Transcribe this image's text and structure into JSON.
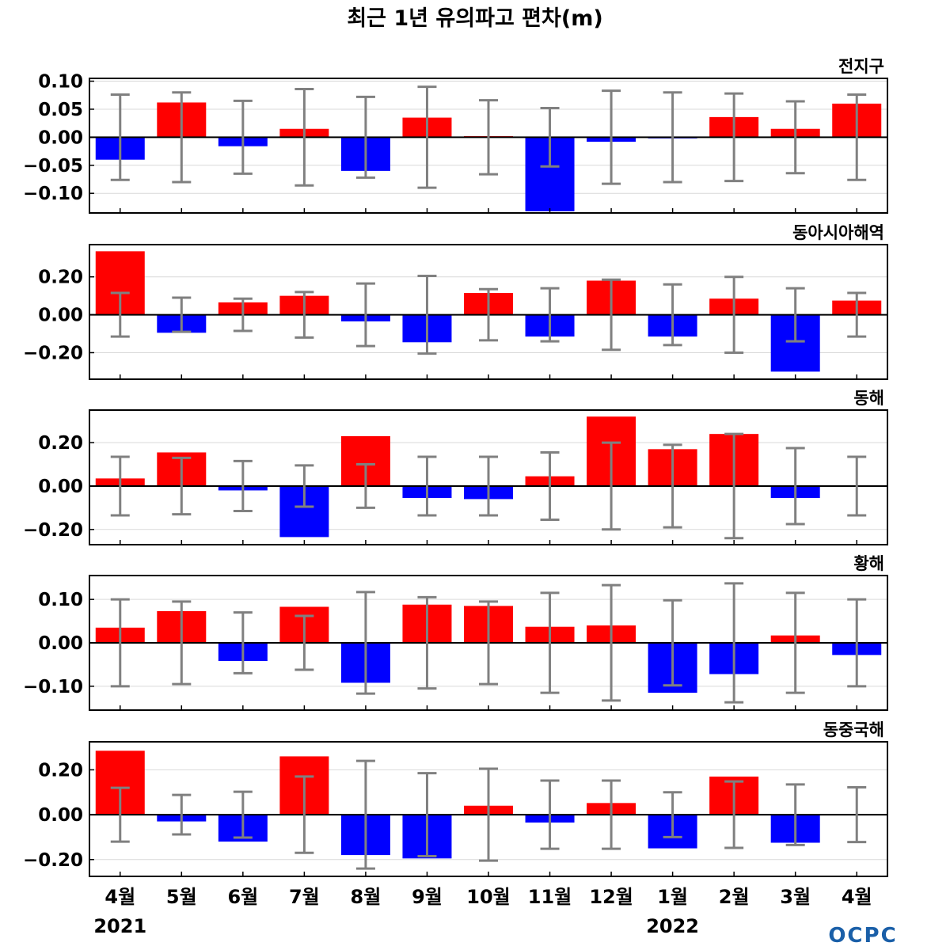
{
  "chart_data": {
    "type": "bar",
    "title": "최근 1년 유의파고 편차(m)",
    "categories": [
      "4월",
      "5월",
      "6월",
      "7월",
      "8월",
      "9월",
      "10월",
      "11월",
      "12월",
      "1월",
      "2월",
      "3월",
      "4월"
    ],
    "year_labels": [
      {
        "category_index": 0,
        "text": "2021"
      },
      {
        "category_index": 9,
        "text": "2022"
      }
    ],
    "colors": {
      "positive": "#ff0000",
      "negative": "#0000ff",
      "error_bar": "#808080",
      "grid": "#d9d9d9"
    },
    "logo_text": "OCPC",
    "panels": [
      {
        "name": "전지구",
        "ylim": [
          -0.135,
          0.105
        ],
        "yticks": [
          0.1,
          0.05,
          0.0,
          -0.05,
          -0.1
        ],
        "tick_labels": [
          "0.10",
          "0.05",
          "0.00",
          "−0.05",
          "−0.10"
        ],
        "values": [
          -0.04,
          0.062,
          -0.016,
          0.015,
          -0.06,
          0.035,
          0.002,
          -0.132,
          -0.008,
          -0.002,
          0.036,
          0.015,
          0.06
        ],
        "error": [
          0.076,
          0.08,
          0.065,
          0.086,
          0.072,
          0.09,
          0.066,
          0.052,
          0.083,
          0.08,
          0.078,
          0.064,
          0.076
        ]
      },
      {
        "name": "동아시아해역",
        "ylim": [
          -0.34,
          0.37
        ],
        "yticks": [
          0.2,
          0.0,
          -0.2
        ],
        "tick_labels": [
          "0.20",
          "0.00",
          "−0.20"
        ],
        "values": [
          0.335,
          -0.095,
          0.065,
          0.1,
          -0.035,
          -0.145,
          0.115,
          -0.115,
          0.18,
          -0.115,
          0.085,
          -0.3,
          0.075
        ],
        "error": [
          0.115,
          0.09,
          0.085,
          0.12,
          0.165,
          0.205,
          0.135,
          0.14,
          0.185,
          0.16,
          0.2,
          0.14,
          0.115
        ]
      },
      {
        "name": "동해",
        "ylim": [
          -0.27,
          0.35
        ],
        "yticks": [
          0.2,
          0.0,
          -0.2
        ],
        "tick_labels": [
          "0.20",
          "0.00",
          "−0.20"
        ],
        "values": [
          0.035,
          0.155,
          -0.02,
          -0.235,
          0.23,
          -0.055,
          -0.06,
          0.045,
          0.32,
          0.17,
          0.24,
          -0.055,
          0.002
        ],
        "error": [
          0.135,
          0.13,
          0.115,
          0.095,
          0.1,
          0.135,
          0.135,
          0.155,
          0.2,
          0.19,
          0.24,
          0.175,
          0.135
        ]
      },
      {
        "name": "황해",
        "ylim": [
          -0.155,
          0.155
        ],
        "yticks": [
          0.1,
          0.0,
          -0.1
        ],
        "tick_labels": [
          "0.10",
          "0.00",
          "−0.10"
        ],
        "values": [
          0.035,
          0.073,
          -0.042,
          0.083,
          -0.092,
          0.088,
          0.085,
          0.037,
          0.04,
          -0.115,
          -0.072,
          0.017,
          -0.028
        ],
        "error": [
          0.1,
          0.095,
          0.07,
          0.062,
          0.117,
          0.105,
          0.095,
          0.115,
          0.133,
          0.098,
          0.137,
          0.115,
          0.1
        ]
      },
      {
        "name": "동중국해",
        "ylim": [
          -0.275,
          0.325
        ],
        "yticks": [
          0.2,
          0.0,
          -0.2
        ],
        "tick_labels": [
          "0.20",
          "0.00",
          "−0.20"
        ],
        "values": [
          0.285,
          -0.03,
          -0.12,
          0.26,
          -0.18,
          -0.195,
          0.04,
          -0.035,
          0.052,
          -0.15,
          0.17,
          -0.125,
          0.002
        ],
        "error": [
          0.12,
          0.088,
          0.102,
          0.17,
          0.24,
          0.185,
          0.205,
          0.152,
          0.152,
          0.1,
          0.148,
          0.135,
          0.122
        ]
      }
    ]
  }
}
